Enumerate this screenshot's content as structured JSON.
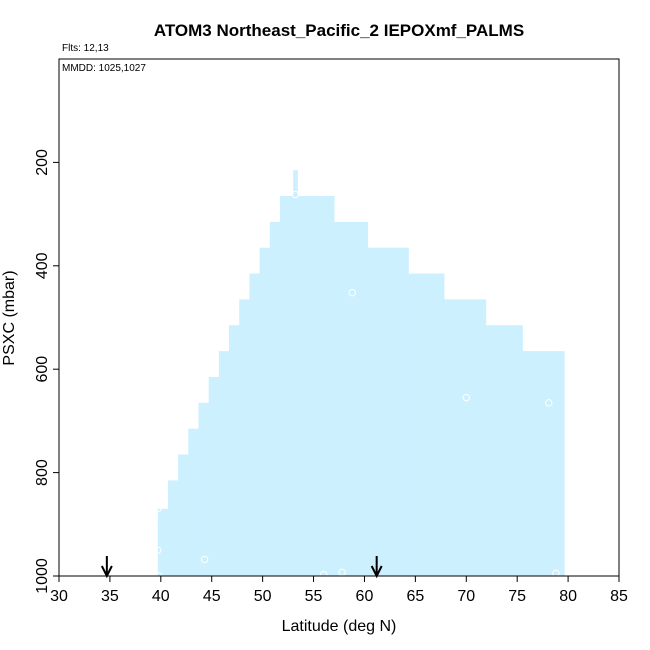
{
  "chart_data": {
    "type": "area",
    "title": "ATOM3 Northeast_Pacific_2 IEPOXmf_PALMS",
    "notes": {
      "flights": "Flts: 12,13",
      "dates": "MMDD: 1025,1027"
    },
    "xlabel": "Latitude (deg N)",
    "ylabel": "PSXC (mbar)",
    "xlim": [
      30,
      85
    ],
    "ylim": [
      1000,
      0
    ],
    "y_inverted": true,
    "x_ticks": [
      30,
      35,
      40,
      45,
      50,
      55,
      60,
      65,
      70,
      75,
      80,
      85
    ],
    "x_tick_labels": [
      "30",
      "35",
      "40",
      "45",
      "50",
      "55",
      "60",
      "65",
      "70",
      "75",
      "80",
      "85"
    ],
    "y_ticks": [
      200,
      400,
      600,
      800,
      1000
    ],
    "y_tick_labels": [
      "200",
      "400",
      "600",
      "800",
      "1000"
    ],
    "grid": false,
    "fill_color": "#cdf0ff",
    "marker_color": "#ffffff",
    "arrow_color": "#000000",
    "coverage_envelope": {
      "bottom": 1000,
      "steps": [
        {
          "x0": 39.7,
          "x1": 40.7,
          "top": 870
        },
        {
          "x0": 40.7,
          "x1": 41.7,
          "top": 815
        },
        {
          "x0": 41.7,
          "x1": 42.7,
          "top": 765
        },
        {
          "x0": 42.7,
          "x1": 43.7,
          "top": 715
        },
        {
          "x0": 43.7,
          "x1": 44.7,
          "top": 665
        },
        {
          "x0": 44.7,
          "x1": 45.7,
          "top": 615
        },
        {
          "x0": 45.7,
          "x1": 46.7,
          "top": 565
        },
        {
          "x0": 46.7,
          "x1": 47.7,
          "top": 515
        },
        {
          "x0": 47.7,
          "x1": 48.7,
          "top": 465
        },
        {
          "x0": 48.7,
          "x1": 49.7,
          "top": 415
        },
        {
          "x0": 49.7,
          "x1": 50.7,
          "top": 365
        },
        {
          "x0": 50.7,
          "x1": 51.7,
          "top": 315
        },
        {
          "x0": 51.7,
          "x1": 53.0,
          "top": 265
        },
        {
          "x0": 53.0,
          "x1": 53.4,
          "top": 215
        },
        {
          "x0": 53.4,
          "x1": 57.0,
          "top": 265
        },
        {
          "x0": 57.0,
          "x1": 60.3,
          "top": 315
        },
        {
          "x0": 60.3,
          "x1": 64.3,
          "top": 365
        },
        {
          "x0": 64.3,
          "x1": 67.8,
          "top": 415
        },
        {
          "x0": 67.8,
          "x1": 71.9,
          "top": 465
        },
        {
          "x0": 71.9,
          "x1": 75.5,
          "top": 515
        },
        {
          "x0": 75.5,
          "x1": 79.6,
          "top": 565
        },
        {
          "x0": 79.0,
          "x1": 79.6,
          "top": 610,
          "ends_at": 610
        }
      ],
      "right_edge_lat": 79.0
    },
    "points": [
      {
        "x": 39.7,
        "y": 870
      },
      {
        "x": 39.7,
        "y": 950
      },
      {
        "x": 39.8,
        "y": 1000
      },
      {
        "x": 44.3,
        "y": 968
      },
      {
        "x": 53.2,
        "y": 262
      },
      {
        "x": 58.8,
        "y": 452
      },
      {
        "x": 56.0,
        "y": 997
      },
      {
        "x": 57.8,
        "y": 993
      },
      {
        "x": 70.0,
        "y": 655
      },
      {
        "x": 78.1,
        "y": 665
      },
      {
        "x": 78.8,
        "y": 995
      }
    ],
    "arrows": [
      {
        "x": 34.7
      },
      {
        "x": 61.2
      }
    ]
  }
}
